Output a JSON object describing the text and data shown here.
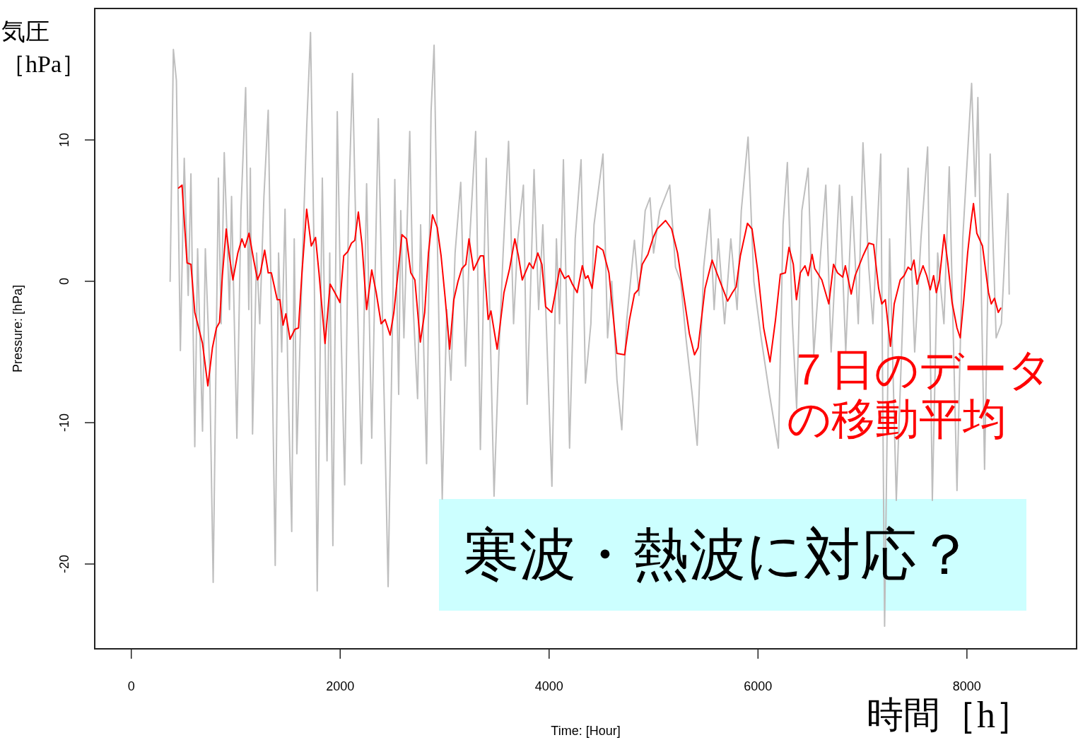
{
  "chart_data": {
    "type": "line",
    "xlabel": "Time: [Hour]",
    "ylabel": "Pressure: [hPa]",
    "annotations": [
      "気圧［hPa］",
      "時間［h］",
      "寒波・熱波に対応？"
    ],
    "xlim": [
      -350,
      9050
    ],
    "ylim": [
      -26,
      19.3
    ],
    "xticks": [
      0,
      2000,
      4000,
      6000,
      8000
    ],
    "yticks": [
      -20,
      -10,
      0,
      10
    ],
    "series": [
      {
        "color": "#bebebe",
        "x": [
          372,
          403,
          432,
          470,
          507,
          545,
          571,
          608,
          635,
          682,
          709,
          750,
          784,
          834,
          860,
          890,
          940,
          960,
          1011,
          1050,
          1095,
          1125,
          1140,
          1161,
          1200,
          1230,
          1270,
          1311,
          1345,
          1378,
          1410,
          1440,
          1472,
          1500,
          1536,
          1560,
          1585,
          1640,
          1680,
          1716,
          1750,
          1780,
          1829,
          1874,
          1900,
          1930,
          1972,
          2010,
          2043,
          2080,
          2118,
          2160,
          2203,
          2253,
          2302,
          2365,
          2420,
          2459,
          2523,
          2560,
          2580,
          2610,
          2666,
          2700,
          2741,
          2770,
          2827,
          2870,
          2899,
          2930,
          2977,
          3020,
          3060,
          3100,
          3154,
          3200,
          3240,
          3297,
          3342,
          3398,
          3473,
          3520,
          3560,
          3612,
          3660,
          3700,
          3754,
          3790,
          3856,
          3900,
          3940,
          4027,
          4070,
          4100,
          4137,
          4196,
          4250,
          4306,
          4348,
          4400,
          4430,
          4516,
          4560,
          4600,
          4650,
          4696,
          4740,
          4817,
          4860,
          4920,
          4966,
          5000,
          5060,
          5155,
          5210,
          5260,
          5310,
          5370,
          5418,
          5480,
          5538,
          5580,
          5620,
          5680,
          5740,
          5800,
          5840,
          5905,
          5960,
          6030,
          6110,
          6195,
          6240,
          6281,
          6330,
          6370,
          6420,
          6480,
          6534,
          6600,
          6649,
          6700,
          6780,
          6840,
          6900,
          6960,
          7005,
          7060,
          7100,
          7175,
          7212,
          7260,
          7324,
          7437,
          7500,
          7560,
          7624,
          7669,
          7720,
          7780,
          7831,
          7905,
          7960,
          8045,
          8080,
          8105,
          8169,
          8223,
          8280,
          8330,
          8392,
          8405
        ],
        "values": [
          0,
          16.4,
          14.2,
          -4.9,
          8.7,
          -1,
          7.6,
          -11.7,
          2.3,
          -10.6,
          2.3,
          -6,
          -21.3,
          7.3,
          -3,
          9.1,
          -2,
          6,
          -11.1,
          5,
          13.7,
          -2,
          8,
          -10.8,
          2,
          -3,
          6,
          12.1,
          -4,
          -20.1,
          2,
          -5,
          5.1,
          -7,
          -17.7,
          3,
          -12.2,
          2,
          11,
          17.6,
          2,
          -21.9,
          7.3,
          -12.7,
          2,
          -18.7,
          12,
          -4,
          -14.4,
          5,
          14.7,
          0,
          -12.9,
          6.9,
          -11.1,
          11.5,
          -8,
          -21.6,
          7.2,
          -8,
          5,
          -4,
          10.6,
          -2,
          -8.3,
          4,
          -12.9,
          12,
          16.7,
          3,
          -15.4,
          -2,
          -7,
          2,
          7,
          -6,
          3,
          10.6,
          -11.9,
          8.7,
          -15.2,
          -5,
          2,
          9.9,
          -3,
          3,
          6.8,
          -8.7,
          7.9,
          -2,
          4,
          -14.5,
          3,
          -3,
          8.6,
          -11.8,
          3,
          8.6,
          -7.2,
          -3,
          4,
          9,
          -4,
          0,
          -7,
          -10.5,
          -3,
          2.9,
          -1,
          5,
          5.9,
          2,
          5,
          6.8,
          1,
          0,
          -4,
          -8,
          -11.6,
          1,
          5.1,
          -2,
          3,
          -3,
          3,
          -2,
          5,
          10.2,
          0,
          -4,
          -8,
          -11.8,
          4,
          8.4,
          -3,
          -9,
          5,
          8,
          -5.2,
          2,
          6.8,
          -5,
          6.8,
          -5,
          6,
          -3,
          9.8,
          1,
          -3,
          9,
          -24.4,
          3,
          -15.5,
          8,
          -5,
          3,
          9.5,
          -15.5,
          2,
          -3,
          8.1,
          -14.8,
          3,
          14,
          6,
          13,
          -13.3,
          9,
          -4,
          -3,
          6.2,
          -0.9
        ]
      },
      {
        "name": "７日のデータの移動平均",
        "color": "#ff0000",
        "x": [
          453,
          486,
          496,
          534,
          571,
          608,
          682,
          733,
          777,
          815,
          845,
          872,
          909,
          939,
          973,
          1020,
          1059,
          1088,
          1127,
          1172,
          1209,
          1236,
          1277,
          1311,
          1341,
          1397,
          1423,
          1453,
          1480,
          1520,
          1566,
          1601,
          1634,
          1679,
          1723,
          1764,
          1797,
          1855,
          1904,
          1949,
          1998,
          2034,
          2073,
          2108,
          2140,
          2174,
          2209,
          2253,
          2302,
          2345,
          2392,
          2430,
          2478,
          2514,
          2591,
          2635,
          2676,
          2715,
          2767,
          2809,
          2845,
          2884,
          2929,
          2966,
          3004,
          3048,
          3088,
          3128,
          3165,
          3203,
          3233,
          3277,
          3342,
          3372,
          3417,
          3443,
          3503,
          3568,
          3622,
          3672,
          3706,
          3743,
          3811,
          3848,
          3892,
          3931,
          3967,
          4025,
          4102,
          4149,
          4186,
          4223,
          4269,
          4318,
          4348,
          4372,
          4412,
          4459,
          4516,
          4573,
          4649,
          4723,
          4770,
          4817,
          4854,
          4892,
          4946,
          4997,
          5034,
          5115,
          5173,
          5230,
          5285,
          5343,
          5392,
          5426,
          5493,
          5561,
          5605,
          5709,
          5755,
          5791,
          5831,
          5899,
          5943,
          6000,
          6054,
          6115,
          6168,
          6214,
          6262,
          6297,
          6338,
          6368,
          6405,
          6450,
          6480,
          6518,
          6543,
          6611,
          6678,
          6723,
          6761,
          6811,
          6836,
          6865,
          6892,
          6930,
          7005,
          7061,
          7107,
          7155,
          7185,
          7219,
          7268,
          7304,
          7362,
          7399,
          7437,
          7466,
          7493,
          7523,
          7547,
          7580,
          7615,
          7649,
          7681,
          7707,
          7736,
          7782,
          7817,
          7858,
          7905,
          7936,
          7970,
          8007,
          8038,
          8063,
          8095,
          8149,
          8207,
          8233,
          8264,
          8300,
          8324
        ],
        "values": [
          6.6,
          6.8,
          5.6,
          1.3,
          1.2,
          -2.2,
          -4.4,
          -7.4,
          -4.7,
          -3.3,
          -2.9,
          0.4,
          3.7,
          1.8,
          0.1,
          2.0,
          3.0,
          2.4,
          3.4,
          1.5,
          0.1,
          0.6,
          2.2,
          0.6,
          0.6,
          -1.3,
          -1.3,
          -3.1,
          -2.3,
          -4.1,
          -3.4,
          -3.3,
          0.6,
          5.1,
          2.5,
          3.1,
          0.6,
          -4.4,
          -0.2,
          -0.8,
          -1.5,
          1.8,
          2.1,
          2.7,
          2.9,
          4.9,
          2.6,
          -2.0,
          0.8,
          -0.8,
          -3.0,
          -2.7,
          -3.8,
          -2.2,
          3.3,
          3.0,
          0.6,
          0.1,
          -4.3,
          -2.2,
          2.0,
          4.7,
          3.8,
          1.8,
          -1.1,
          -4.8,
          -1.3,
          0.0,
          0.9,
          1.2,
          3.0,
          0.8,
          1.8,
          1.8,
          -2.7,
          -2.1,
          -4.8,
          -0.8,
          0.9,
          3.0,
          1.8,
          0.1,
          1.3,
          0.9,
          2.0,
          1.2,
          -1.8,
          -2.2,
          0.9,
          0.2,
          0.4,
          -0.2,
          -0.8,
          1.1,
          0.2,
          0.4,
          -0.5,
          2.5,
          2.2,
          0.6,
          -5.1,
          -5.2,
          -2.7,
          -0.9,
          -0.6,
          1.2,
          1.9,
          3.1,
          3.7,
          4.3,
          3.7,
          2.0,
          -0.8,
          -3.7,
          -5.2,
          -4.7,
          -0.5,
          1.5,
          0.6,
          -1.4,
          -0.8,
          -0.4,
          1.8,
          4.1,
          3.7,
          0.6,
          -3.3,
          -5.7,
          -2.7,
          0.5,
          0.6,
          2.4,
          1.2,
          -1.3,
          0.6,
          1.1,
          0.4,
          1.9,
          0.9,
          0.1,
          -1.6,
          1.2,
          0.6,
          0.3,
          1.1,
          0.1,
          -0.9,
          0.4,
          1.8,
          2.7,
          2.6,
          -0.5,
          -1.6,
          -1.3,
          -4.6,
          -1.6,
          0.1,
          0.4,
          1.0,
          0.8,
          1.5,
          -0.2,
          0.4,
          1.1,
          0.4,
          -0.6,
          0.4,
          -0.8,
          0.1,
          3.3,
          1.3,
          -1.5,
          -3.3,
          -4.0,
          -1.3,
          2.0,
          4.1,
          5.5,
          3.4,
          2.5,
          -0.8,
          -1.6,
          -1.2,
          -2.2,
          -1.9
        ]
      }
    ]
  }
}
